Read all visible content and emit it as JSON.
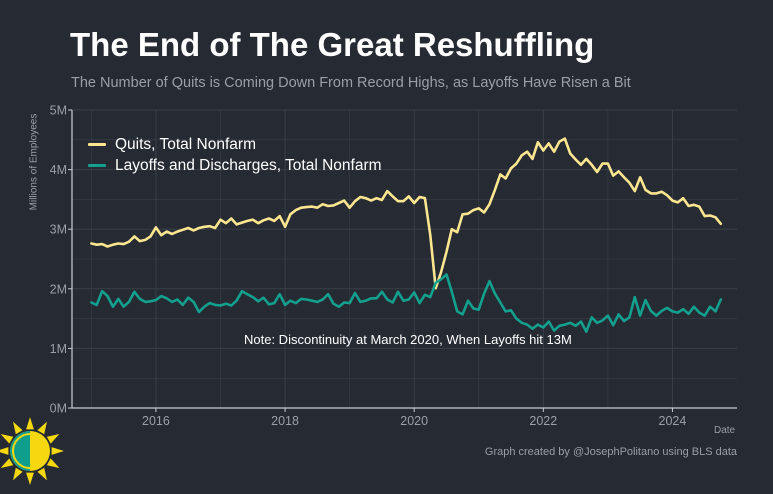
{
  "title": "The End of The Great Reshuffling",
  "subtitle": "The Number of Quits is Coming Down From Record Highs, as Layoffs Have Risen a Bit",
  "credit": "Graph created by @JosephPolitano using BLS data",
  "colors": {
    "background": "#252a33",
    "quits": "#fce690",
    "layoffs": "#14a08e",
    "grid": "#3a3f48",
    "axis_text": "#9b9fa6",
    "logo_sun": "#f5d80f",
    "logo_teal": "#0f9d8c"
  },
  "logo": {
    "icon": "sun-logo-icon"
  },
  "chart_data": {
    "type": "line",
    "title": "The End of The Great Reshuffling",
    "subtitle": "The Number of Quits is Coming Down From Record Highs, as Layoffs Have Risen a Bit",
    "xlabel": "Date",
    "ylabel": "Millions of Employees",
    "xlim": [
      2014.7,
      2025.0
    ],
    "ylim": [
      0,
      5
    ],
    "x_ticks": [
      2016,
      2018,
      2020,
      2022,
      2024
    ],
    "x_tick_labels": [
      "2016",
      "2018",
      "2020",
      "2022",
      "2024"
    ],
    "y_ticks": [
      0,
      1,
      2,
      3,
      4,
      5
    ],
    "y_tick_labels": [
      "0M",
      "1M",
      "2M",
      "3M",
      "4M",
      "5M"
    ],
    "grid": true,
    "legend_position": "top-left",
    "note": "Note: Discontinuity at March 2020, When Layoffs hit 13M",
    "x_start": 2015.0,
    "x_step_years": 0.08333,
    "series": [
      {
        "name": "Quits, Total Nonfarm",
        "color": "#fce690",
        "values": [
          2.76,
          2.74,
          2.75,
          2.71,
          2.74,
          2.76,
          2.75,
          2.79,
          2.88,
          2.8,
          2.82,
          2.88,
          3.03,
          2.9,
          2.96,
          2.92,
          2.96,
          2.99,
          3.02,
          2.98,
          3.02,
          3.04,
          3.05,
          3.02,
          3.16,
          3.1,
          3.18,
          3.08,
          3.11,
          3.14,
          3.16,
          3.1,
          3.15,
          3.18,
          3.14,
          3.22,
          3.04,
          3.25,
          3.32,
          3.36,
          3.37,
          3.38,
          3.36,
          3.42,
          3.39,
          3.4,
          3.44,
          3.48,
          3.36,
          3.47,
          3.54,
          3.52,
          3.48,
          3.52,
          3.49,
          3.64,
          3.55,
          3.47,
          3.47,
          3.55,
          3.44,
          3.54,
          3.52,
          2.9,
          2.01,
          2.28,
          2.62,
          3.0,
          2.95,
          3.25,
          3.26,
          3.32,
          3.35,
          3.28,
          3.42,
          3.66,
          3.92,
          3.85,
          4.02,
          4.1,
          4.24,
          4.3,
          4.18,
          4.46,
          4.32,
          4.44,
          4.3,
          4.47,
          4.52,
          4.27,
          4.17,
          4.08,
          4.18,
          4.08,
          3.96,
          4.1,
          4.1,
          3.9,
          3.97,
          3.87,
          3.78,
          3.64,
          3.87,
          3.66,
          3.6,
          3.6,
          3.63,
          3.57,
          3.48,
          3.45,
          3.52,
          3.39,
          3.41,
          3.38,
          3.22,
          3.23,
          3.2,
          3.09
        ]
      },
      {
        "name": "Layoffs and Discharges, Total Nonfarm",
        "color": "#14a08e",
        "values": [
          1.77,
          1.73,
          1.96,
          1.88,
          1.7,
          1.83,
          1.7,
          1.78,
          1.95,
          1.83,
          1.78,
          1.79,
          1.81,
          1.88,
          1.84,
          1.78,
          1.82,
          1.73,
          1.85,
          1.78,
          1.61,
          1.7,
          1.76,
          1.73,
          1.72,
          1.75,
          1.72,
          1.8,
          1.96,
          1.91,
          1.86,
          1.79,
          1.85,
          1.74,
          1.76,
          1.91,
          1.73,
          1.8,
          1.76,
          1.83,
          1.82,
          1.8,
          1.78,
          1.82,
          1.91,
          1.75,
          1.7,
          1.77,
          1.76,
          1.93,
          1.78,
          1.8,
          1.84,
          1.84,
          1.95,
          1.82,
          1.77,
          1.95,
          1.8,
          1.82,
          1.94,
          1.76,
          1.9,
          1.86,
          2.1,
          2.16,
          2.24,
          1.95,
          1.62,
          1.57,
          1.8,
          1.67,
          1.65,
          1.92,
          2.13,
          1.92,
          1.77,
          1.62,
          1.64,
          1.5,
          1.43,
          1.4,
          1.33,
          1.4,
          1.35,
          1.45,
          1.3,
          1.38,
          1.4,
          1.43,
          1.38,
          1.45,
          1.28,
          1.52,
          1.43,
          1.47,
          1.55,
          1.39,
          1.57,
          1.46,
          1.52,
          1.86,
          1.55,
          1.81,
          1.63,
          1.55,
          1.63,
          1.68,
          1.62,
          1.6,
          1.66,
          1.58,
          1.7,
          1.6,
          1.55,
          1.7,
          1.62,
          1.82
        ]
      }
    ]
  }
}
